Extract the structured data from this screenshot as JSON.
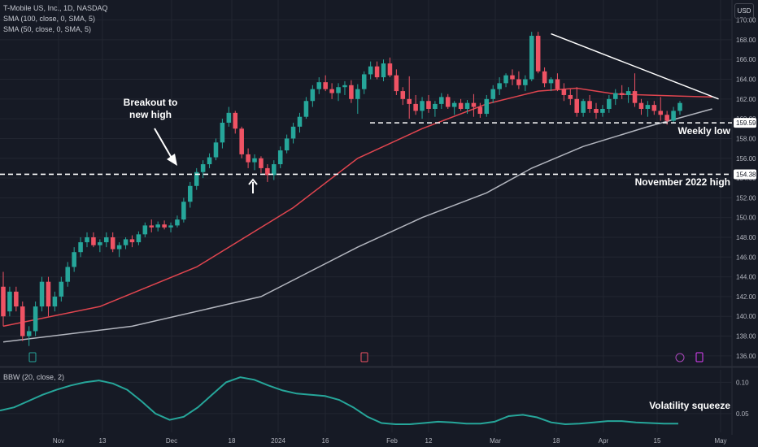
{
  "header": {
    "symbol_line": "T-Mobile US, Inc., 1D, NASDAQ",
    "sma100_line": "SMA (100, close, 0, SMA, 5)",
    "sma50_line": "SMA (50, close, 0, SMA, 5)",
    "currency": "USD"
  },
  "indicator": {
    "label": "BBW (20, close, 2)"
  },
  "colors": {
    "background": "#161a25",
    "grid": "#222631",
    "up": "#26a69a",
    "down": "#ef5364",
    "sma50": "#e0454f",
    "sma100": "#b2b5be",
    "bbw": "#26a69a",
    "annotation": "#ffffff"
  },
  "chart_data": {
    "type": "candlestick",
    "price_axis": {
      "ticks": [
        136,
        138,
        140,
        142,
        144,
        146,
        148,
        150,
        152,
        154,
        156,
        158,
        160,
        162,
        164,
        166,
        168,
        170
      ],
      "tick_labels": [
        "136.00",
        "138.00",
        "140.00",
        "142.00",
        "144.00",
        "146.00",
        "148.00",
        "150.00",
        "152.00",
        "154.00",
        "156.00",
        "158.00",
        "160.00",
        "162.00",
        "164.00",
        "166.00",
        "168.00",
        "170.00"
      ],
      "ylim": [
        135,
        171.2
      ]
    },
    "time_axis": {
      "labels": [
        "Nov",
        "13",
        "Dec",
        "18",
        "2024",
        "16",
        "Feb",
        "12",
        "Mar",
        "18",
        "Apr",
        "15",
        "May"
      ]
    },
    "candles": [
      [
        143,
        144.5,
        139,
        140
      ],
      [
        140.5,
        143,
        140,
        142.5
      ],
      [
        142.5,
        143,
        140.5,
        141
      ],
      [
        141,
        141.5,
        137.5,
        138
      ],
      [
        138,
        139,
        137,
        138.5
      ],
      [
        138.5,
        141.5,
        138,
        141
      ],
      [
        141,
        144,
        140.5,
        143.5
      ],
      [
        143.5,
        144,
        140,
        141
      ],
      [
        141,
        142.5,
        140.5,
        142
      ],
      [
        142,
        144,
        141.5,
        143.5
      ],
      [
        143.5,
        145.5,
        143,
        145
      ],
      [
        145,
        147,
        144.5,
        146.5
      ],
      [
        146.5,
        148,
        146,
        147.5
      ],
      [
        147.5,
        148.5,
        147,
        148
      ],
      [
        148,
        148.5,
        147,
        147.2
      ],
      [
        147.2,
        147.8,
        146.5,
        147.5
      ],
      [
        147.5,
        148.5,
        147,
        148
      ],
      [
        148,
        148.5,
        146.5,
        146.8
      ],
      [
        146.8,
        147.5,
        146,
        147.2
      ],
      [
        147.2,
        148,
        146.8,
        147.8
      ],
      [
        147.8,
        148.2,
        147,
        147.5
      ],
      [
        147.5,
        148.6,
        147.2,
        148.3
      ],
      [
        148.3,
        149.5,
        148,
        149.2
      ],
      [
        149.2,
        149.8,
        148.5,
        149
      ],
      [
        149,
        149.6,
        148.6,
        149.3
      ],
      [
        149.3,
        149.7,
        148.8,
        149
      ],
      [
        149,
        149.5,
        148.5,
        149.2
      ],
      [
        149.2,
        150.2,
        149,
        149.8
      ],
      [
        149.8,
        152,
        149.5,
        151.6
      ],
      [
        151.6,
        153.6,
        151,
        153.2
      ],
      [
        153.2,
        155,
        152.8,
        154.6
      ],
      [
        154.6,
        155.8,
        154,
        155.4
      ],
      [
        155.4,
        156.5,
        155,
        156.1
      ],
      [
        156.1,
        158,
        155.8,
        157.6
      ],
      [
        157.6,
        160,
        157,
        159.6
      ],
      [
        159.6,
        161.2,
        159.2,
        160.6
      ],
      [
        160.6,
        160.8,
        158.5,
        159
      ],
      [
        159,
        159.2,
        156,
        156.4
      ],
      [
        156.4,
        157,
        155,
        155.6
      ],
      [
        155.6,
        156.4,
        154.8,
        156
      ],
      [
        156,
        156.2,
        154.5,
        155
      ],
      [
        155,
        155.4,
        153.6,
        154.3
      ],
      [
        154.3,
        155.8,
        153.8,
        155.4
      ],
      [
        155.4,
        157.2,
        155,
        156.8
      ],
      [
        156.8,
        158.4,
        156.5,
        158
      ],
      [
        158,
        159.6,
        157.5,
        159.2
      ],
      [
        159.2,
        160.6,
        158.6,
        160.2
      ],
      [
        160.2,
        162.2,
        160,
        161.8
      ],
      [
        161.8,
        163.4,
        161.2,
        163
      ],
      [
        163,
        164.2,
        162.5,
        163.7
      ],
      [
        163.7,
        164.4,
        162.8,
        163
      ],
      [
        163,
        163.6,
        162,
        162.6
      ],
      [
        162.6,
        163.6,
        161.8,
        163.2
      ],
      [
        163.2,
        163.8,
        162.4,
        163.4
      ],
      [
        163.4,
        163.9,
        161.6,
        162
      ],
      [
        162,
        163.5,
        160.5,
        163
      ],
      [
        163,
        164.8,
        162.5,
        164.5
      ],
      [
        164.5,
        165.8,
        164,
        165.3
      ],
      [
        165.3,
        165.8,
        164,
        164.2
      ],
      [
        164.2,
        166,
        163.8,
        165.6
      ],
      [
        165.6,
        166.2,
        164.2,
        164.4
      ],
      [
        164.4,
        165,
        162.4,
        162.8
      ],
      [
        162.8,
        163.2,
        161.4,
        162
      ],
      [
        162,
        164.3,
        160,
        161.5
      ],
      [
        161.5,
        162.4,
        160.4,
        160.8
      ],
      [
        160.8,
        162.2,
        160,
        161.8
      ],
      [
        161.8,
        162.4,
        160.6,
        161
      ],
      [
        161,
        161.8,
        160.2,
        161.5
      ],
      [
        161.5,
        162.6,
        161,
        162.2
      ],
      [
        162.2,
        162.5,
        161,
        161.2
      ],
      [
        161.2,
        161.8,
        160.4,
        161.6
      ],
      [
        161.6,
        162,
        160.8,
        161
      ],
      [
        161,
        161.9,
        160.5,
        161.6
      ],
      [
        161.6,
        162.5,
        160.2,
        161.2
      ],
      [
        161.2,
        161.6,
        160.1,
        160.5
      ],
      [
        160.5,
        162.4,
        160.2,
        162
      ],
      [
        162,
        163.4,
        161.6,
        163
      ],
      [
        163,
        164.2,
        162.4,
        163.6
      ],
      [
        163.6,
        164.6,
        163.2,
        164.4
      ],
      [
        164.4,
        165,
        163.4,
        164
      ],
      [
        164,
        164.8,
        163,
        163.4
      ],
      [
        163.4,
        164.4,
        162.8,
        164
      ],
      [
        164,
        168.8,
        163.8,
        168.4
      ],
      [
        168.4,
        168.8,
        164.6,
        164.8
      ],
      [
        164.8,
        165.2,
        163.2,
        163.6
      ],
      [
        163.6,
        164.2,
        162.8,
        164
      ],
      [
        164,
        164.6,
        162.8,
        163
      ],
      [
        163,
        163.6,
        161.8,
        162.4
      ],
      [
        162.4,
        163,
        161.4,
        162
      ],
      [
        162,
        163.2,
        160.2,
        160.6
      ],
      [
        160.6,
        162,
        160.2,
        161.8
      ],
      [
        161.8,
        162.4,
        160.6,
        161
      ],
      [
        161,
        161.6,
        160,
        160.6
      ],
      [
        160.6,
        161.4,
        160.2,
        161
      ],
      [
        161,
        162.4,
        160.6,
        162
      ],
      [
        162,
        163,
        161.4,
        162.6
      ],
      [
        162.6,
        163.4,
        162,
        162.4
      ],
      [
        162.4,
        163.2,
        161.6,
        162.8
      ],
      [
        162.8,
        164.6,
        161.2,
        161.6
      ],
      [
        161.6,
        162,
        160.4,
        161
      ],
      [
        161,
        161.8,
        160.2,
        161.4
      ],
      [
        161.4,
        161.8,
        160.4,
        160.8
      ],
      [
        160.8,
        162.2,
        159.8,
        160.4
      ],
      [
        160.4,
        160.8,
        159.4,
        159.8
      ],
      [
        159.8,
        161.2,
        159.6,
        160.8
      ],
      [
        160.8,
        161.8,
        160.4,
        161.6
      ]
    ],
    "sma50_points": [
      [
        0,
        139
      ],
      [
        15,
        141
      ],
      [
        30,
        145
      ],
      [
        45,
        151
      ],
      [
        55,
        156
      ],
      [
        65,
        159
      ],
      [
        75,
        161.5
      ],
      [
        83,
        162.8
      ],
      [
        89,
        163.1
      ],
      [
        95,
        162.5
      ],
      [
        105,
        162.3
      ],
      [
        110,
        162.2
      ]
    ],
    "sma100_points": [
      [
        0,
        137.4
      ],
      [
        20,
        139
      ],
      [
        40,
        142
      ],
      [
        55,
        147
      ],
      [
        65,
        150
      ],
      [
        75,
        152.5
      ],
      [
        82,
        155
      ],
      [
        90,
        157.2
      ],
      [
        100,
        159.2
      ],
      [
        110,
        161
      ]
    ],
    "annotations": {
      "breakout_text": [
        "Breakout to",
        "new high"
      ],
      "weekly_low": {
        "price": 159.59,
        "label": "Weekly low",
        "badge": "159.59"
      },
      "nov_high": {
        "price": 154.38,
        "label": "November 2022 high",
        "badge": "154.38"
      },
      "trendline": {
        "from": [
          85,
          168.6
        ],
        "to": [
          111,
          162
        ]
      }
    },
    "bbw": {
      "label": "BBW (20, close, 2)",
      "ticks": [
        "0.10",
        "0.05"
      ],
      "tick_values": [
        0.1,
        0.05
      ],
      "ylim": [
        0.02,
        0.12
      ],
      "annotation": "Volatility squeeze",
      "values": [
        0.055,
        0.06,
        0.07,
        0.08,
        0.088,
        0.095,
        0.1,
        0.103,
        0.098,
        0.088,
        0.07,
        0.05,
        0.04,
        0.045,
        0.06,
        0.08,
        0.1,
        0.108,
        0.104,
        0.095,
        0.087,
        0.082,
        0.08,
        0.078,
        0.072,
        0.06,
        0.045,
        0.035,
        0.033,
        0.033,
        0.035,
        0.037,
        0.036,
        0.034,
        0.034,
        0.037,
        0.046,
        0.048,
        0.044,
        0.036,
        0.033,
        0.034,
        0.036,
        0.038,
        0.038,
        0.036,
        0.035,
        0.034,
        0.034
      ]
    }
  }
}
